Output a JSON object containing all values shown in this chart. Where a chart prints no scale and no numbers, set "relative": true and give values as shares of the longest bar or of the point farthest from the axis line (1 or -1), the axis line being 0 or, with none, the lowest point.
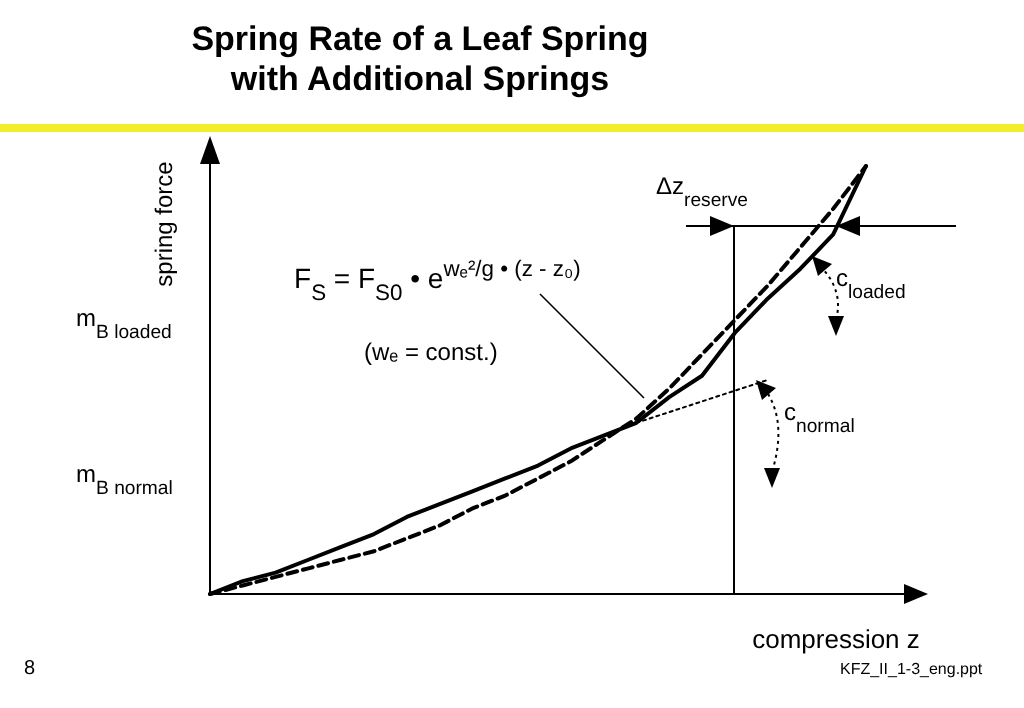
{
  "chart_data": {
    "type": "line",
    "title": "Spring Rate of a Leaf Spring\nwith Additional Springs",
    "xlabel": "compression $^{}$z",
    "ylabel": "spring force",
    "relative": true,
    "marker": "none",
    "categories": [
      null,
      null,
      null,
      null,
      null,
      null,
      null,
      null,
      null,
      null,
      null,
      null,
      null,
      null,
      null,
      null,
      null,
      null,
      null,
      null,
      null
    ],
    "series": [
      {
        "color": "#000000",
        "line_style": "solid",
        "values": [
          0,
          0.03,
          0.05,
          0.08,
          0.11,
          0.14,
          0.18,
          0.21,
          0.24,
          0.27,
          0.3,
          0.34,
          0.37,
          0.4,
          0.46,
          0.51,
          0.61,
          0.69,
          0.76,
          0.84,
          1.0
        ]
      },
      {
        "color": "#000000",
        "line_style": "dashed",
        "values": [
          0,
          0.02,
          0.04,
          0.06,
          0.08,
          0.1,
          0.13,
          0.16,
          0.2,
          0.23,
          0.27,
          0.31,
          0.36,
          0.41,
          0.48,
          0.56,
          0.64,
          0.72,
          0.81,
          0.9,
          1.0
        ]
      },
      {
        "color": "#000000",
        "line_style": "dotted",
        "values": [
          null,
          null,
          null,
          null,
          null,
          null,
          null,
          null,
          null,
          null,
          null,
          null,
          null,
          0.4,
          0.425,
          0.45,
          0.475,
          0.5,
          null,
          null,
          null
        ]
      }
    ],
    "annotations": [
      "F$_{S}$ = F$_{S0}$ • e$^{wₑ²/g • (z - z₀)}$",
      "(wₑ = const.)",
      "Δz$_{reserve}$",
      "c$_{loaded}$",
      "c$_{normal}$",
      "m$_{B loaded}$",
      "m$_{B normal}$",
      "8",
      "KFZ_II_1-3_eng.ppt"
    ]
  }
}
